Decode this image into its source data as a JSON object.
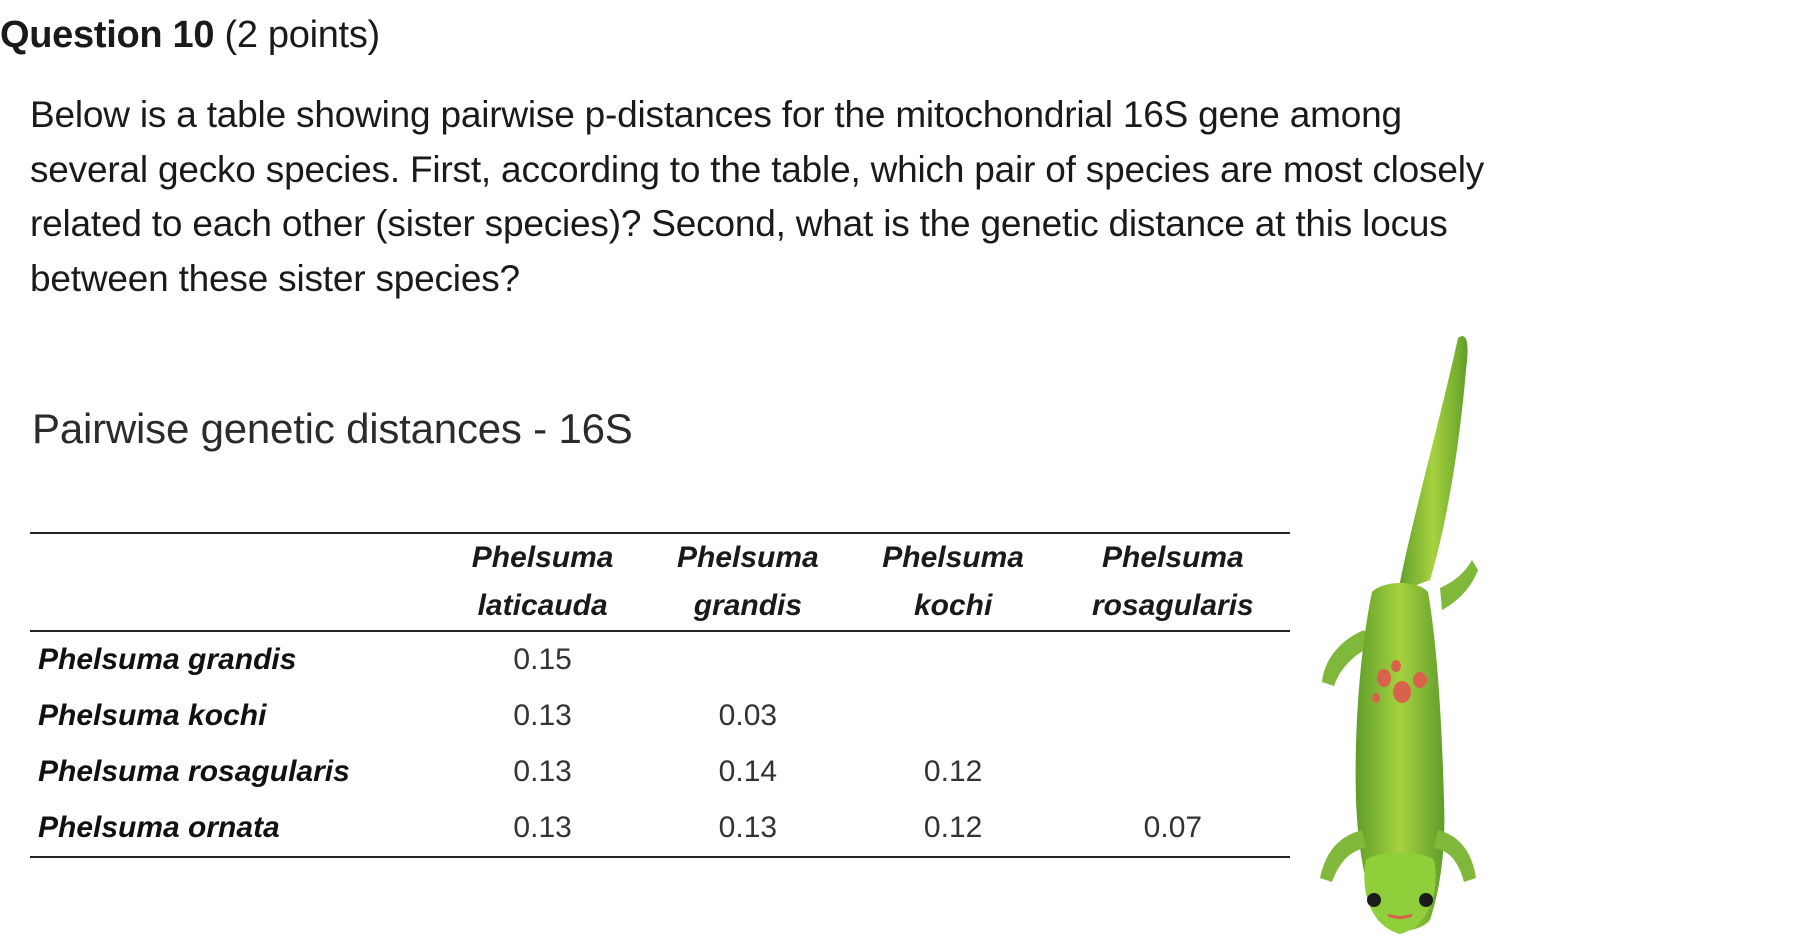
{
  "question": {
    "title": "Question 10",
    "points": "(2 points)",
    "body": "Below is a table showing pairwise p-distances for the mitochondrial 16S gene among several gecko species. First, according to the table, which pair of species are most closely related to each other (sister species)? Second, what is the genetic distance at this locus between these sister species?"
  },
  "table": {
    "title": "Pairwise genetic distances - 16S",
    "columns": [
      {
        "line1": "Phelsuma",
        "line2": "laticauda"
      },
      {
        "line1": "Phelsuma",
        "line2": "grandis"
      },
      {
        "line1": "Phelsuma",
        "line2": "kochi"
      },
      {
        "line1": "Phelsuma",
        "line2": "rosagularis"
      }
    ],
    "rows": [
      {
        "label": "Phelsuma grandis",
        "values": [
          "0.15",
          "",
          "",
          ""
        ]
      },
      {
        "label": "Phelsuma kochi",
        "values": [
          "0.13",
          "0.03",
          "",
          ""
        ]
      },
      {
        "label": "Phelsuma rosagularis",
        "values": [
          "0.13",
          "0.14",
          "0.12",
          ""
        ]
      },
      {
        "label": "Phelsuma ornata",
        "values": [
          "0.13",
          "0.13",
          "0.12",
          "0.07"
        ]
      }
    ]
  },
  "image": {
    "subject": "gecko",
    "colors": {
      "body": "#8bc83a",
      "spots": "#d9634a",
      "belly": "#6fb52c"
    }
  }
}
